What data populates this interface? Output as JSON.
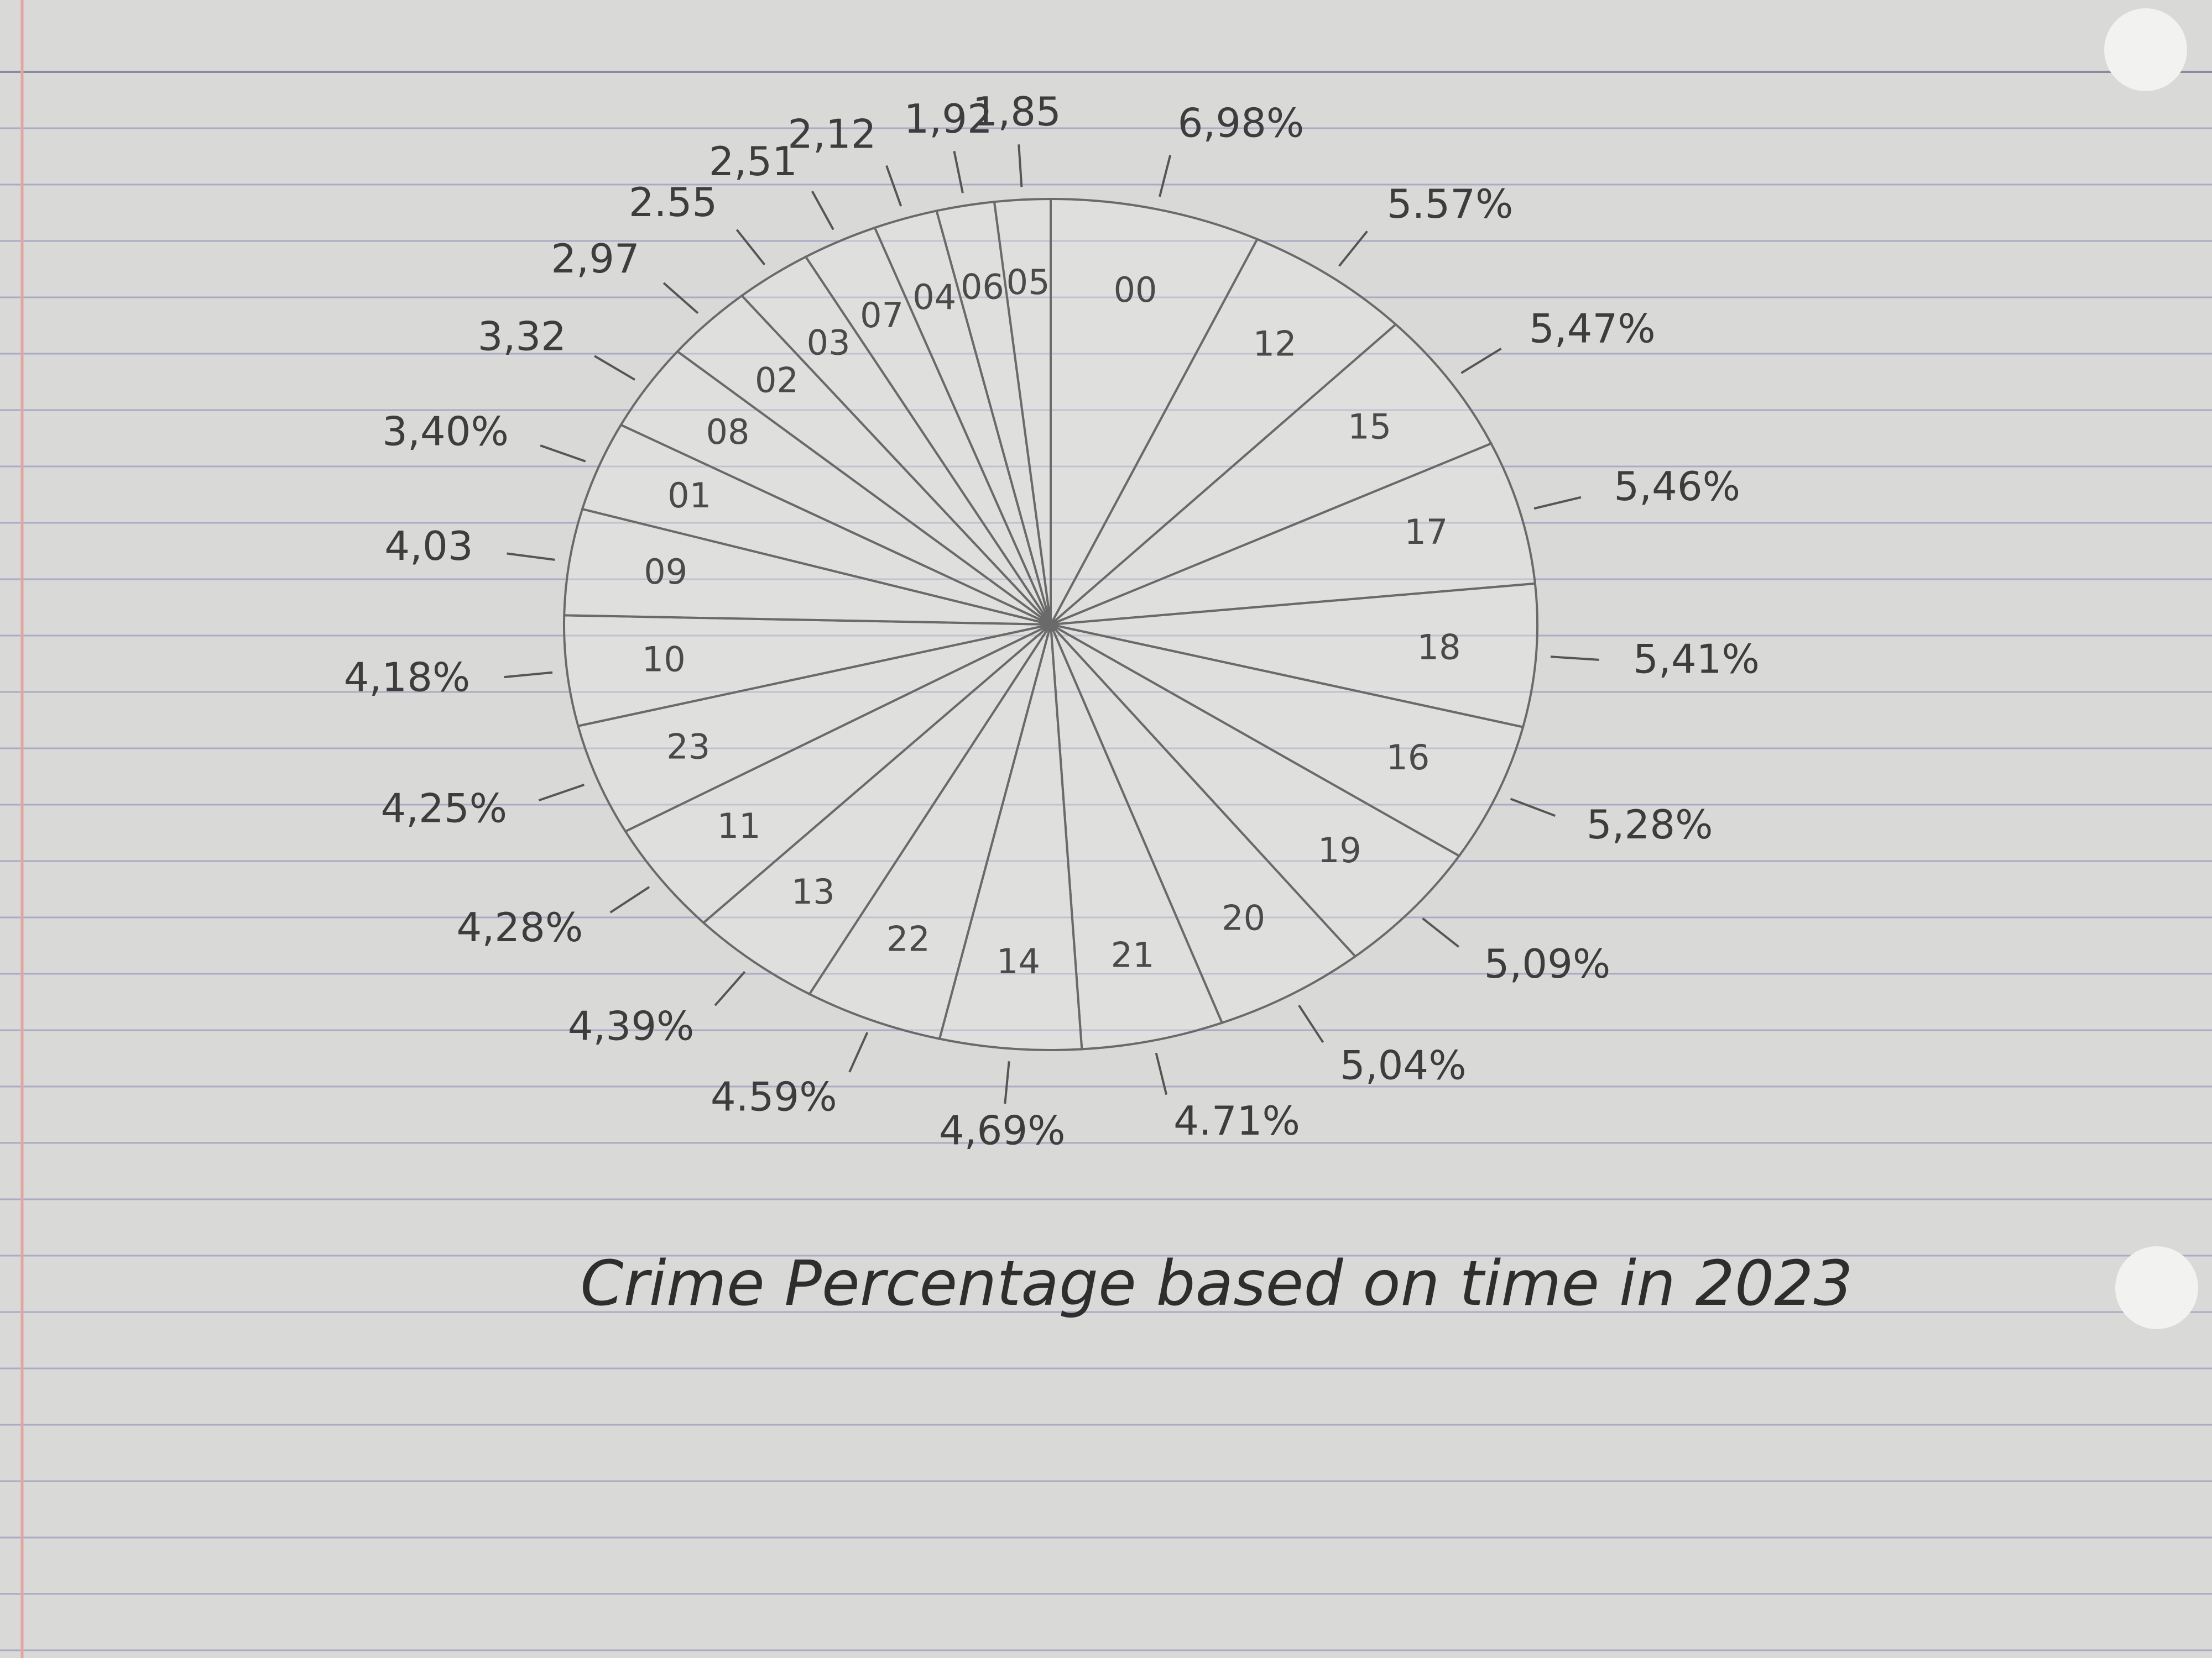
{
  "chart_data": {
    "type": "pie",
    "title": "Crime Percentage based on time in 2023",
    "categories": [
      "00",
      "12",
      "15",
      "17",
      "18",
      "16",
      "19",
      "20",
      "21",
      "14",
      "22",
      "13",
      "11",
      "23",
      "10",
      "09",
      "01",
      "08",
      "02",
      "03",
      "07",
      "04",
      "06",
      "05"
    ],
    "values": [
      6.98,
      5.57,
      5.47,
      5.46,
      5.41,
      5.28,
      5.09,
      5.04,
      4.71,
      4.69,
      4.59,
      4.39,
      4.28,
      4.25,
      4.18,
      4.03,
      3.4,
      3.32,
      2.97,
      2.55,
      2.51,
      2.12,
      1.92,
      1.85
    ],
    "value_labels": [
      "6,98%",
      "5.57%",
      "5,47%",
      "5,46%",
      "5,41%",
      "5,28%",
      "5,09%",
      "5,04%",
      "4.71%",
      "4,69%",
      "4.59%",
      "4,39%",
      "4,28%",
      "4,25%",
      "4,18%",
      "4,03",
      "3,40%",
      "3,32",
      "2,97",
      "2.55",
      "2,51",
      "2,12",
      "1,92",
      "1,85"
    ]
  }
}
